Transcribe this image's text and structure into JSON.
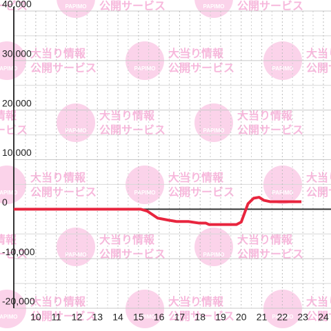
{
  "chart_data": {
    "type": "line",
    "x": [
      8.93,
      15.1,
      15.43,
      15.93,
      16.43,
      16.87,
      17.43,
      17.93,
      18.27,
      18.43,
      19.77,
      20.0,
      20.33,
      20.6,
      20.87,
      21.1,
      21.43,
      22.93
    ],
    "series": [
      {
        "color": "#e8253e",
        "values": [
          0,
          0,
          -400,
          -1800,
          -2200,
          -2500,
          -2500,
          -2800,
          -2800,
          -3100,
          -3100,
          -2600,
          1100,
          2200,
          2400,
          1800,
          1500,
          1500
        ]
      }
    ],
    "xlim": [
      8.93,
      24.37
    ],
    "ylim": [
      -20000,
      40000
    ],
    "xticks": [
      10,
      11,
      12,
      13,
      14,
      15,
      16,
      17,
      18,
      19,
      20,
      21,
      22,
      23,
      24
    ],
    "yticks": [
      {
        "value": -20000,
        "label": "-20,000"
      },
      {
        "value": -10000,
        "label": "-10,000"
      },
      0,
      {
        "value": 10000,
        "label": "10,000"
      },
      {
        "value": 20000,
        "label": "20,000"
      },
      {
        "value": 30000,
        "label": "30,000"
      },
      {
        "value": 40000,
        "label": "40,000"
      }
    ],
    "grid": true,
    "watermark": {
      "logo": "PAPIMO",
      "line1": "大当り情報",
      "line2": "公開サービス"
    }
  }
}
